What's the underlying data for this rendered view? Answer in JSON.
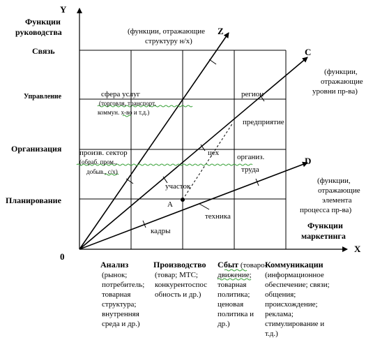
{
  "axes": {
    "y_letter": "Y",
    "x_letter": "X",
    "origin": "0",
    "y_title_line1": "Функции",
    "y_title_line2": "руководства",
    "x_title_line1": "Функции",
    "x_title_line2": "маркетинга"
  },
  "y_levels": [
    "Связь",
    "Управление",
    "Организация",
    "Планирование"
  ],
  "rays": {
    "z": {
      "letter": "Z",
      "note_line1": "(функции, отражающие",
      "note_line2": "структуру н/х)"
    },
    "c": {
      "letter": "C",
      "note_line1": "(функции,",
      "note_line2": "отражающие",
      "note_line3": "уровни пр-ва)"
    },
    "d": {
      "letter": "D",
      "note_line1": "(функции,",
      "note_line2": "отражающие",
      "note_line3": "элемента",
      "note_line4": "процесса пр-ва)"
    }
  },
  "point_a": "A",
  "labels": {
    "services": "сфера услуг",
    "services_note_line1": "(торговля, транспорт,",
    "services_note_line2": "коммун. х-во и т.д.)",
    "region": "регион",
    "enterprise": "предприятие",
    "production_sector": "произв. сектор",
    "production_note_line1": "(обраб. пром.,",
    "production_note_line2": "добыв., с/х)",
    "workshop": "цех",
    "labor_org_line1": "организ.",
    "labor_org_line2": "труда",
    "site": "участок",
    "technics": "техника",
    "personnel": "кадры"
  },
  "columns": [
    {
      "title": "Анализ",
      "lines": [
        "(рынок;",
        "потребитель;",
        "товарная",
        "структура;",
        "внутренняя",
        "среда и др.)"
      ]
    },
    {
      "title": "Производство",
      "lines": [
        "(товар; МТС;",
        "конкурентоспос",
        "обность и др.)"
      ]
    },
    {
      "title": "Сбыт",
      "title_suffix": " (товаро-",
      "lines": [
        "движение;",
        "товарная",
        "политика;",
        "ценовая",
        "политика и",
        "др.)"
      ]
    },
    {
      "title": "Коммуникации",
      "lines": [
        "(информационное",
        "обеспечение;  связи;",
        "общения;",
        "происхождение;",
        "реклама;",
        "стимулирование  и",
        "т.д.)"
      ]
    }
  ]
}
